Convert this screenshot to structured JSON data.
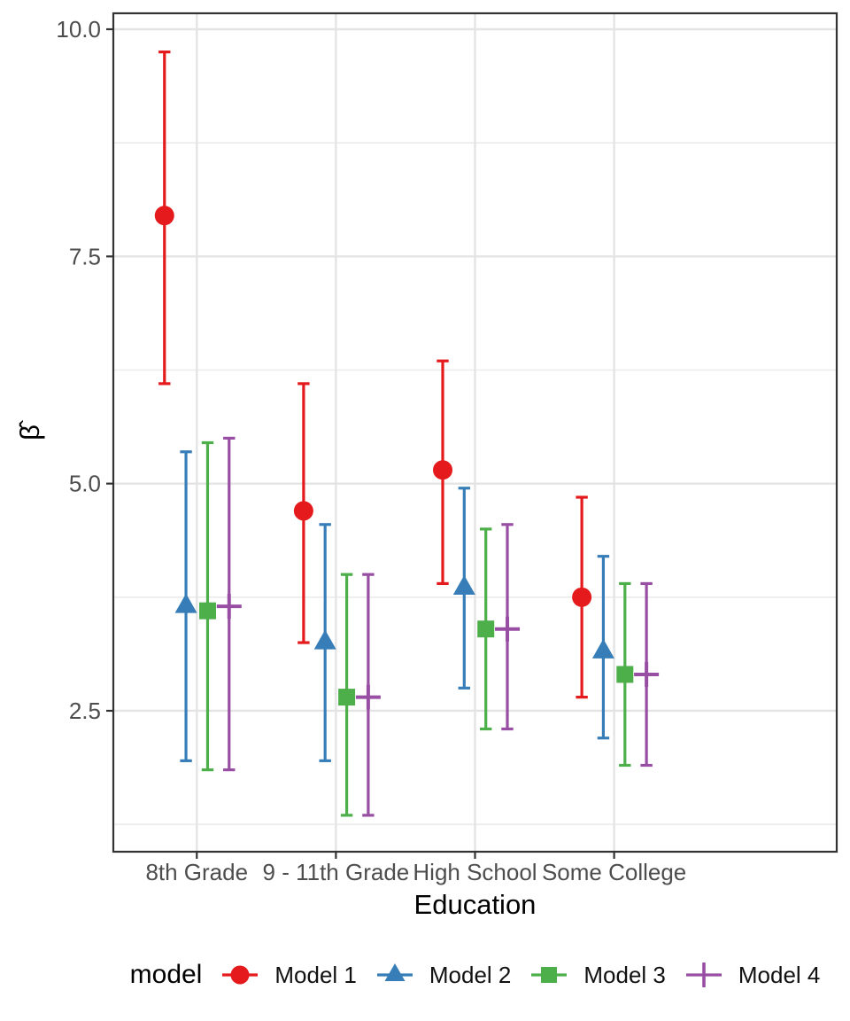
{
  "chart_data": {
    "type": "scatter",
    "subtype": "pointrange-with-errorbars",
    "title": "",
    "xlabel": "Education",
    "ylabel": "β̂",
    "categories": [
      "8th Grade",
      "9 - 11th Grade",
      "High School",
      "Some College"
    ],
    "series": [
      {
        "name": "Model 1",
        "color": "#E41A1C",
        "shape": "circle",
        "estimates": [
          7.95,
          4.7,
          5.15,
          3.75
        ],
        "ci_lower": [
          6.1,
          3.25,
          3.9,
          2.65
        ],
        "ci_upper": [
          9.75,
          6.1,
          6.35,
          4.85
        ]
      },
      {
        "name": "Model 2",
        "color": "#377EB8",
        "shape": "triangle",
        "estimates": [
          3.65,
          3.25,
          3.85,
          3.15
        ],
        "ci_lower": [
          1.95,
          1.95,
          2.75,
          2.2
        ],
        "ci_upper": [
          5.35,
          4.55,
          4.95,
          4.2
        ]
      },
      {
        "name": "Model 3",
        "color": "#4DAF4A",
        "shape": "square",
        "estimates": [
          3.6,
          2.65,
          3.4,
          2.9
        ],
        "ci_lower": [
          1.85,
          1.35,
          2.3,
          1.9
        ],
        "ci_upper": [
          5.45,
          4.0,
          4.5,
          3.9
        ]
      },
      {
        "name": "Model 4",
        "color": "#984EA3",
        "shape": "plus",
        "estimates": [
          3.65,
          2.65,
          3.4,
          2.9
        ],
        "ci_lower": [
          1.85,
          1.35,
          2.3,
          1.9
        ],
        "ci_upper": [
          5.5,
          4.0,
          4.55,
          3.9
        ]
      }
    ],
    "y_axis": {
      "ticks": [
        2.5,
        5.0,
        7.5,
        10.0
      ],
      "tick_labels": [
        "2.5",
        "5.0",
        "7.5",
        "10.0"
      ],
      "minor_gridlines": [
        1.25,
        3.75,
        6.25,
        8.75
      ],
      "range": [
        0.95,
        10.19
      ]
    },
    "legend": {
      "title": "model",
      "position": "bottom"
    },
    "grid": true,
    "style": {
      "panel_border_color": "#333333",
      "major_grid_color": "#e4e4e4",
      "minor_grid_color": "#ebebeb",
      "tick_color": "#333333",
      "tick_label_color": "#4d4d4d",
      "axis_title_color": "#000000"
    }
  }
}
